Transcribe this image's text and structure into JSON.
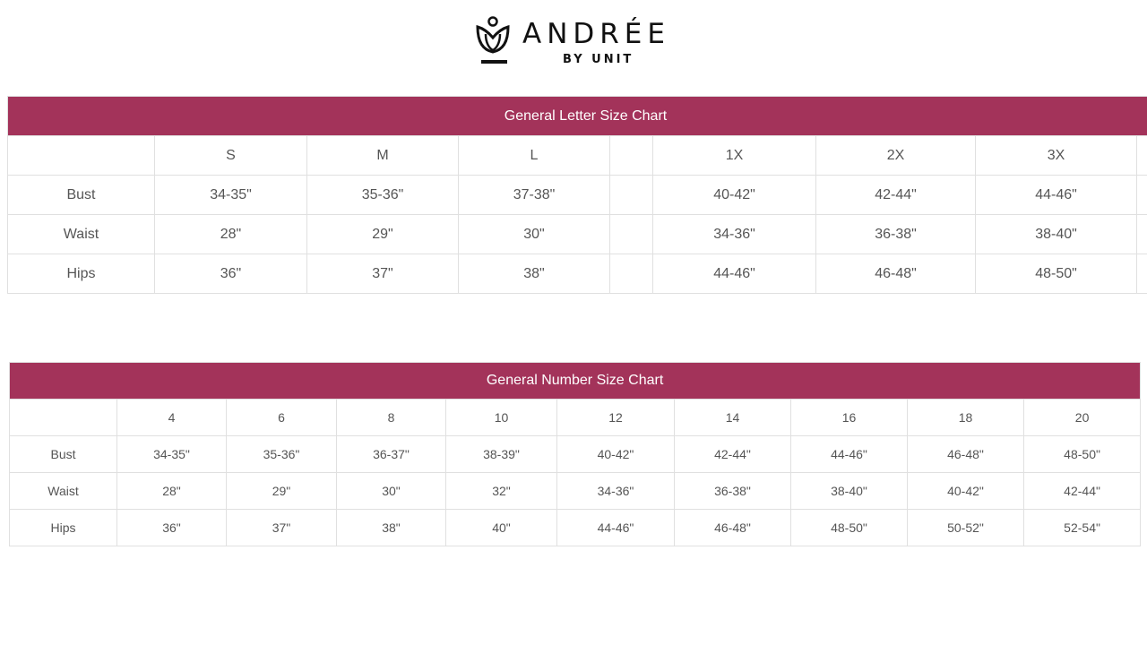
{
  "logo": {
    "brand": "ANDRÉE",
    "sub": "BY UNIT"
  },
  "letter_chart": {
    "title": "General Letter Size Chart",
    "headers": [
      "",
      "S",
      "M",
      "L",
      "",
      "1X",
      "2X",
      "3X",
      ""
    ],
    "rows": [
      [
        "Bust",
        "34-35\"",
        "35-36\"",
        "37-38\"",
        "",
        "40-42\"",
        "42-44\"",
        "44-46\"",
        ""
      ],
      [
        "Waist",
        "28\"",
        "29\"",
        "30\"",
        "",
        "34-36\"",
        "36-38\"",
        "38-40\"",
        ""
      ],
      [
        "Hips",
        "36\"",
        "37\"",
        "38\"",
        "",
        "44-46\"",
        "46-48\"",
        "48-50\"",
        ""
      ]
    ]
  },
  "number_chart": {
    "title": "General Number Size Chart",
    "headers": [
      "",
      "4",
      "6",
      "8",
      "10",
      "12",
      "14",
      "16",
      "18",
      "20"
    ],
    "rows": [
      [
        "Bust",
        "34-35\"",
        "35-36\"",
        "36-37\"",
        "38-39\"",
        "40-42\"",
        "42-44\"",
        "44-46\"",
        "46-48\"",
        "48-50\""
      ],
      [
        "Waist",
        "28\"",
        "29\"",
        "30\"",
        "32\"",
        "34-36\"",
        "36-38\"",
        "38-40\"",
        "40-42\"",
        "42-44\""
      ],
      [
        "Hips",
        "36\"",
        "37\"",
        "38\"",
        "40\"",
        "44-46\"",
        "46-48\"",
        "48-50\"",
        "50-52\"",
        "52-54\""
      ]
    ]
  },
  "colors": {
    "header_bg": "#a3335a"
  }
}
